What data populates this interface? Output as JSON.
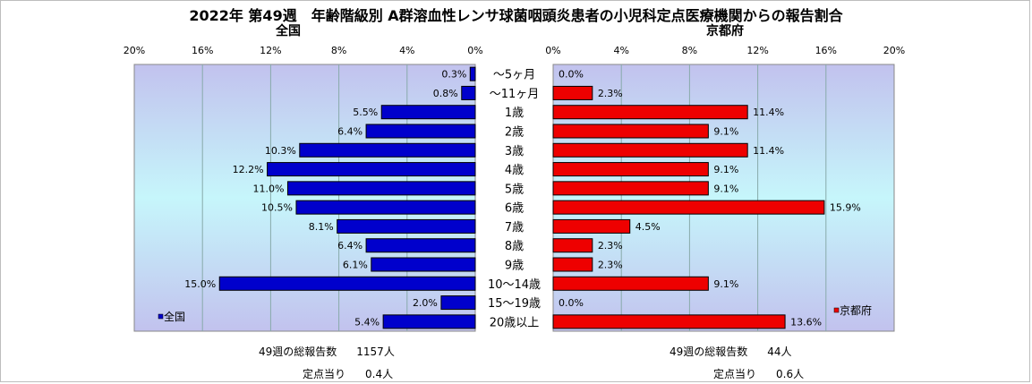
{
  "title": "2022年 第49週　年齢階級別 A群溶血性レンサ球菌咽頭炎患者の小児科定点医療機関からの報告割合",
  "chart_data": {
    "type": "bar",
    "orientation": "horizontal-pyramid",
    "categories": [
      "～5ヶ月",
      "～11ヶ月",
      "1歳",
      "2歳",
      "3歳",
      "4歳",
      "5歳",
      "6歳",
      "7歳",
      "8歳",
      "9歳",
      "10～14歳",
      "15～19歳",
      "20歳以上"
    ],
    "xlim": [
      0,
      20
    ],
    "ticks": [
      "0%",
      "4%",
      "8%",
      "12%",
      "16%",
      "20%"
    ],
    "ticks_left": [
      "20%",
      "16%",
      "12%",
      "8%",
      "4%",
      "0%"
    ],
    "grid": true,
    "series": [
      {
        "name": "全国",
        "panel_label": "全国",
        "side": "left",
        "color": "#0000cc",
        "values": [
          0.3,
          0.8,
          5.5,
          6.4,
          10.3,
          12.2,
          11.0,
          10.5,
          8.1,
          6.4,
          6.1,
          15.0,
          2.0,
          5.4
        ],
        "labels": [
          "0.3%",
          "0.8%",
          "5.5%",
          "6.4%",
          "10.3%",
          "12.2%",
          "11.0%",
          "10.5%",
          "8.1%",
          "6.4%",
          "6.1%",
          "15.0%",
          "2.0%",
          "5.4%"
        ]
      },
      {
        "name": "京都府",
        "panel_label": "京都府",
        "side": "right",
        "color": "#ee0000",
        "values": [
          0.0,
          2.3,
          11.4,
          9.1,
          11.4,
          9.1,
          9.1,
          15.9,
          4.5,
          2.3,
          2.3,
          9.1,
          0.0,
          13.6
        ],
        "labels": [
          "0.0%",
          "2.3%",
          "11.4%",
          "9.1%",
          "11.4%",
          "9.1%",
          "9.1%",
          "15.9%",
          "4.5%",
          "2.3%",
          "2.3%",
          "9.1%",
          "0.0%",
          "13.6%"
        ]
      }
    ]
  },
  "footer": {
    "left": {
      "total_label": "49週の総報告数",
      "total_value": "1157人",
      "per_label": "定点当り",
      "per_value": "0.4人"
    },
    "right": {
      "total_label": "49週の総報告数",
      "total_value": "44人",
      "per_label": "定点当り",
      "per_value": "0.6人"
    }
  }
}
